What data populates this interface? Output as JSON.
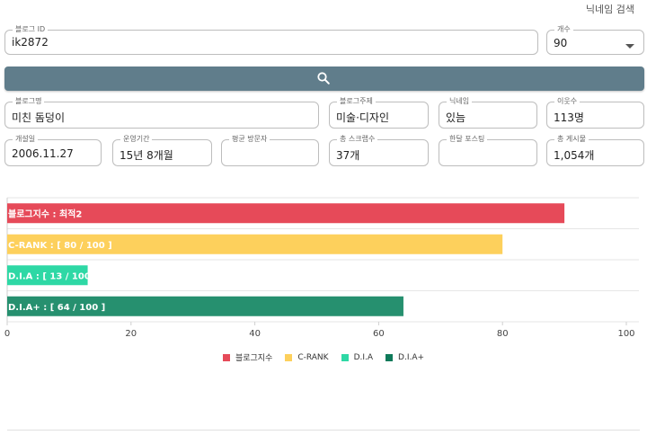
{
  "nav": {
    "nickname_search": "닉네임 검색"
  },
  "form": {
    "blog_id": {
      "label": "블로그 ID",
      "value": "ik2872"
    },
    "count": {
      "label": "개수",
      "value": "90"
    },
    "blog_name": {
      "label": "블로그명",
      "value": "미친 돔덩이"
    },
    "blog_topic": {
      "label": "블로그주제",
      "value": "미술·디자인"
    },
    "nickname": {
      "label": "닉네임",
      "value": "있늠"
    },
    "neighbors": {
      "label": "이웃수",
      "value": "113명"
    },
    "opened": {
      "label": "개설일",
      "value": "2006.11.27"
    },
    "period": {
      "label": "운영기간",
      "value": "15년 8개월"
    },
    "avg_visitors": {
      "label": "평균 방문자",
      "value": ""
    },
    "scraps": {
      "label": "총 스크랩수",
      "value": "37개"
    },
    "monthly_posts": {
      "label": "한달 포스팅",
      "value": ""
    },
    "total_posts": {
      "label": "총 게시물",
      "value": "1,054개"
    }
  },
  "search_button": {
    "icon": "search-icon",
    "color": "#607d8b"
  },
  "chart_data": {
    "type": "bar",
    "orientation": "horizontal",
    "categories": [
      "블로그지수",
      "C-RANK",
      "D.I.A",
      "D.I.A+"
    ],
    "values": [
      90,
      80,
      13,
      64
    ],
    "bar_labels": [
      "블로그지수 : 최적2",
      "C-RANK : [ 80 / 100 ]",
      "D.I.A : [ 13 / 100 ]",
      "D.I.A+ : [ 64 / 100 ]"
    ],
    "colors": [
      "#e64a59",
      "#fdd05c",
      "#2ed8a5",
      "#26906f"
    ],
    "legend": [
      {
        "name": "블로그지수",
        "color": "#e64a59"
      },
      {
        "name": "C-RANK",
        "color": "#fdd05c"
      },
      {
        "name": "D.I.A",
        "color": "#2ed8a5"
      },
      {
        "name": "D.I.A+",
        "color": "#0f7a5a"
      }
    ],
    "xlim": [
      0,
      100
    ],
    "xticks": [
      0,
      20,
      40,
      60,
      80,
      100
    ],
    "legend_position": "bottom",
    "grid": true
  }
}
